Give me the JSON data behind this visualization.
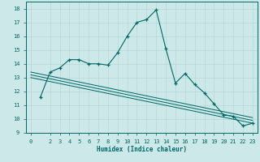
{
  "xlabel": "Humidex (Indice chaleur)",
  "bg_color": "#cce8e8",
  "grid_color": "#b8d8d8",
  "line_color": "#006666",
  "xlim": [
    -0.5,
    23.5
  ],
  "ylim": [
    9,
    18.5
  ],
  "xticks": [
    0,
    2,
    3,
    4,
    5,
    6,
    7,
    8,
    9,
    10,
    11,
    12,
    13,
    14,
    15,
    16,
    17,
    18,
    19,
    20,
    21,
    22,
    23
  ],
  "yticks": [
    9,
    10,
    11,
    12,
    13,
    14,
    15,
    16,
    17,
    18
  ],
  "series1_x": [
    1,
    2,
    3,
    4,
    5,
    6,
    7,
    8,
    9,
    10,
    11,
    12,
    13,
    14,
    15,
    16,
    17,
    18,
    19,
    20,
    21,
    22,
    23
  ],
  "series1_y": [
    11.6,
    13.4,
    13.7,
    14.3,
    14.3,
    14.0,
    14.0,
    13.9,
    14.8,
    16.0,
    17.0,
    17.2,
    17.9,
    15.1,
    12.6,
    13.3,
    12.5,
    11.9,
    11.1,
    10.3,
    10.2,
    9.5,
    9.7
  ],
  "series2_x": [
    0,
    23
  ],
  "series2_y": [
    13.4,
    10.1
  ],
  "series3_x": [
    0,
    23
  ],
  "series3_y": [
    13.2,
    9.9
  ],
  "series4_x": [
    0,
    23
  ],
  "series4_y": [
    13.0,
    9.7
  ]
}
